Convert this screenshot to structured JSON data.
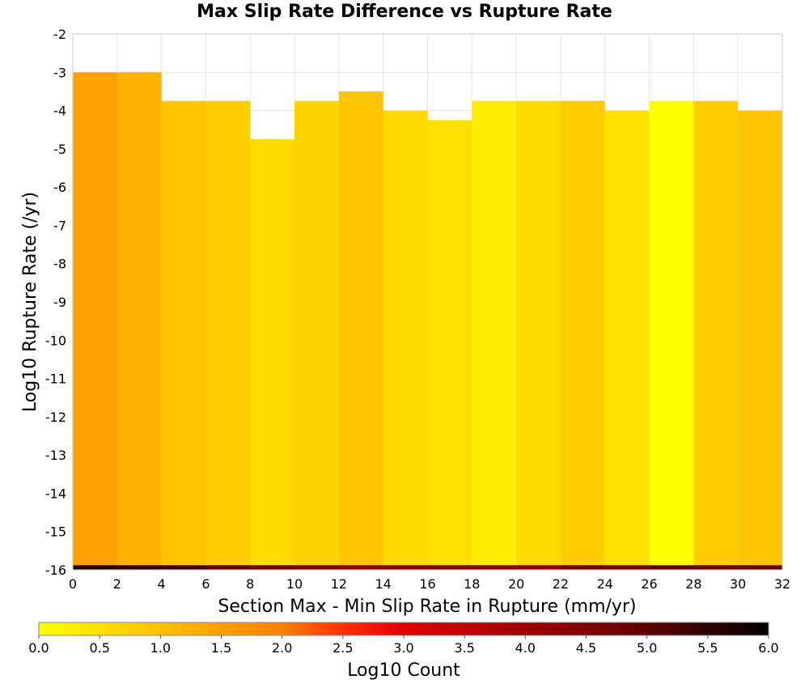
{
  "chart_data": {
    "type": "heatmap",
    "title": "Max Slip Rate Difference vs Rupture Rate",
    "xlabel": "Section Max - Min Slip Rate in Rupture (mm/yr)",
    "ylabel": "Log10 Rupture Rate (/yr)",
    "xlim": [
      0,
      32
    ],
    "ylim": [
      -16,
      -2
    ],
    "x_ticks": [
      "0",
      "2",
      "4",
      "6",
      "8",
      "10",
      "12",
      "14",
      "16",
      "18",
      "20",
      "22",
      "24",
      "26",
      "28",
      "30",
      "32"
    ],
    "y_ticks": [
      "-2",
      "-3",
      "-4",
      "-5",
      "-6",
      "-7",
      "-8",
      "-9",
      "-10",
      "-11",
      "-12",
      "-13",
      "-14",
      "-15",
      "-16"
    ],
    "x_bin_width": 2,
    "y_bin_width": 0.25,
    "colorbar": {
      "label": "Log10 Count",
      "range": [
        0,
        6
      ],
      "ticks": [
        "0.0",
        "0.5",
        "1.0",
        "1.5",
        "2.0",
        "2.5",
        "3.0",
        "3.5",
        "4.0",
        "4.5",
        "5.0",
        "5.5",
        "6.0"
      ],
      "stops": [
        {
          "v": 0.0,
          "color": "#ffff00"
        },
        {
          "v": 1.0,
          "color": "#ffc000"
        },
        {
          "v": 2.0,
          "color": "#ff8000"
        },
        {
          "v": 2.5,
          "color": "#ff3000"
        },
        {
          "v": 3.0,
          "color": "#e00000"
        },
        {
          "v": 4.0,
          "color": "#a00000"
        },
        {
          "v": 5.0,
          "color": "#600000"
        },
        {
          "v": 6.0,
          "color": "#000000"
        }
      ]
    },
    "columns": [
      {
        "x0": 0,
        "rate_min": -16.0,
        "rate_max": -3.0,
        "value": 1.5
      },
      {
        "x0": 2,
        "rate_min": -16.0,
        "rate_max": -3.0,
        "value": 1.2
      },
      {
        "x0": 4,
        "rate_min": -16.0,
        "rate_max": -3.75,
        "value": 0.9
      },
      {
        "x0": 6,
        "rate_min": -16.0,
        "rate_max": -3.75,
        "value": 0.8
      },
      {
        "x0": 8,
        "rate_min": -16.0,
        "rate_max": -4.75,
        "value": 0.6
      },
      {
        "x0": 10,
        "rate_min": -16.0,
        "rate_max": -3.75,
        "value": 0.7
      },
      {
        "x0": 12,
        "rate_min": -16.0,
        "rate_max": -3.5,
        "value": 0.9
      },
      {
        "x0": 14,
        "rate_min": -16.0,
        "rate_max": -4.0,
        "value": 0.6
      },
      {
        "x0": 16,
        "rate_min": -16.0,
        "rate_max": -4.25,
        "value": 0.5
      },
      {
        "x0": 18,
        "rate_min": -16.0,
        "rate_max": -3.75,
        "value": 0.3
      },
      {
        "x0": 20,
        "rate_min": -16.0,
        "rate_max": -3.75,
        "value": 0.6
      },
      {
        "x0": 22,
        "rate_min": -16.0,
        "rate_max": -3.75,
        "value": 0.8
      },
      {
        "x0": 24,
        "rate_min": -16.0,
        "rate_max": -4.0,
        "value": 0.5
      },
      {
        "x0": 26,
        "rate_min": -16.0,
        "rate_max": -3.75,
        "value": 0.0
      },
      {
        "x0": 28,
        "rate_min": -16.0,
        "rate_max": -3.75,
        "value": 0.8
      },
      {
        "x0": 30,
        "rate_min": -16.0,
        "rate_max": -4.0,
        "value": 0.9
      }
    ],
    "bottom_row": {
      "rate_min": -16.0,
      "rate_max": -15.88,
      "values": [
        5.6,
        5.5,
        5.3,
        5.0,
        4.7,
        4.6,
        4.4,
        4.4,
        4.5,
        4.5,
        4.2,
        4.8,
        4.7,
        5.0,
        4.8,
        4.9
      ]
    }
  }
}
